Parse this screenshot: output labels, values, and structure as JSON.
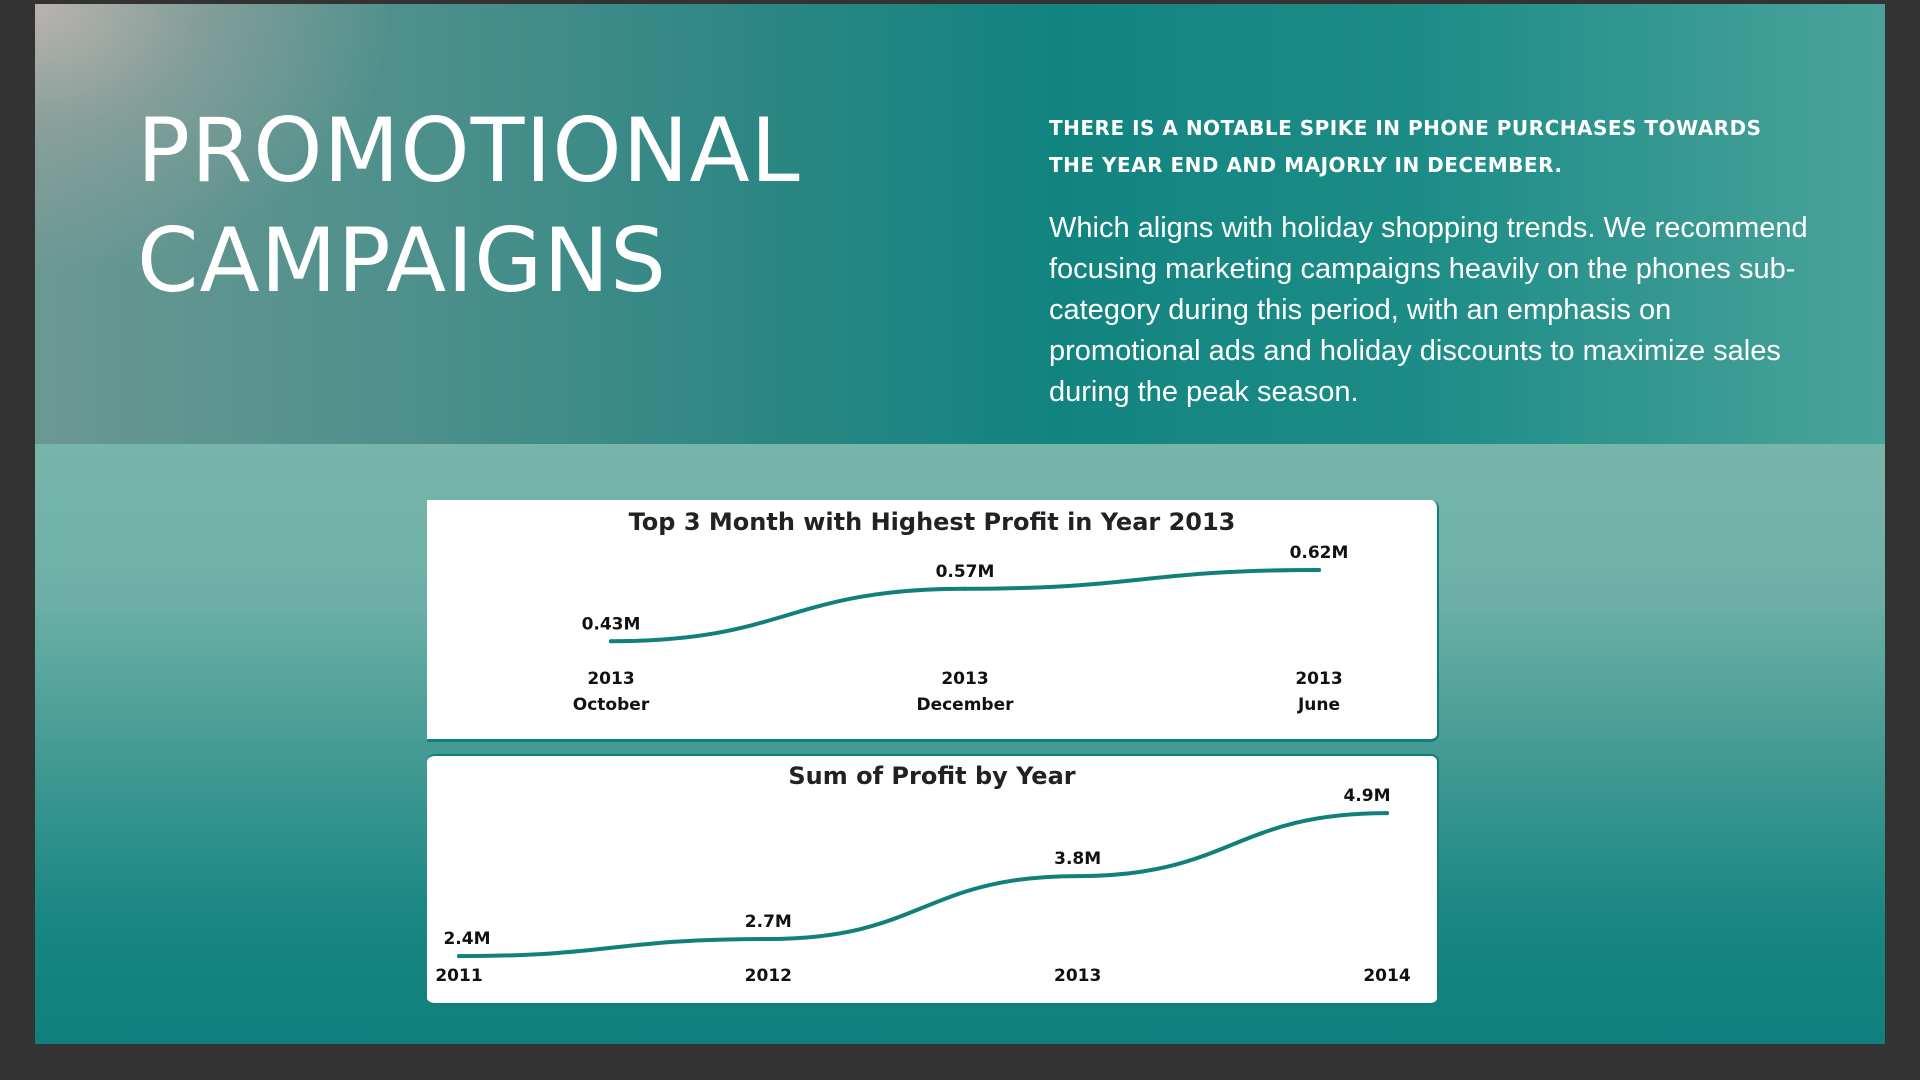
{
  "slide": {
    "title_line1": "PROMOTIONAL",
    "title_line2": "CAMPAIGNS",
    "headline": "There is a notable spike in phone purchases towards the year end and majorly in December.",
    "body": "Which aligns with holiday shopping trends. We recommend focusing marketing campaigns heavily on the phones sub-category during this period, with an emphasis on promotional ads and holiday discounts to maximize sales during the peak season.",
    "colors": {
      "line": "#11807c",
      "teal_dark": "#0f807d",
      "teal_light": "#77b5ab"
    }
  },
  "chart_data": [
    {
      "type": "line",
      "title": "Top 3 Month with Highest Profit in Year 2013",
      "categories": [
        "2013 October",
        "2013 December",
        "2013 June"
      ],
      "category_years": [
        "2013",
        "2013",
        "2013"
      ],
      "category_months": [
        "October",
        "December",
        "June"
      ],
      "values": [
        0.43,
        0.57,
        0.62
      ],
      "data_labels": [
        "0.43M",
        "0.57M",
        "0.62M"
      ],
      "ylim": [
        0.3,
        0.7
      ],
      "grid": false,
      "legend": "none"
    },
    {
      "type": "line",
      "title": "Sum of Profit by Year",
      "categories": [
        "2011",
        "2012",
        "2013",
        "2014"
      ],
      "values": [
        2.4,
        2.7,
        3.8,
        4.9
      ],
      "data_labels": [
        "2.4M",
        "2.7M",
        "3.8M",
        "4.9M"
      ],
      "ylim": [
        2.0,
        5.2
      ],
      "grid": false,
      "legend": "none"
    }
  ]
}
